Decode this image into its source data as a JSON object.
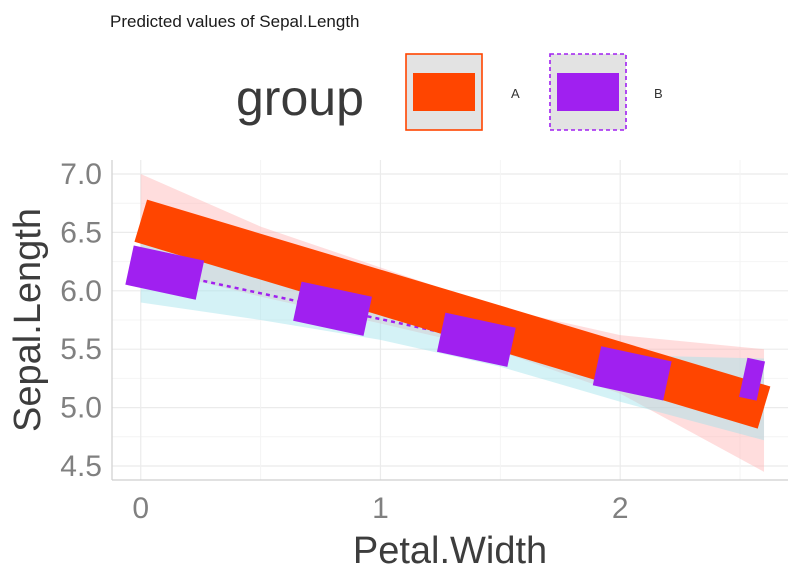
{
  "chart_data": {
    "type": "line",
    "title": "Predicted values of Sepal.Length",
    "xlabel": "Petal.Width",
    "ylabel": "Sepal.Length",
    "xlim": [
      -0.12,
      2.7
    ],
    "ylim": [
      4.38,
      7.12
    ],
    "x_ticks": [
      0,
      1,
      2
    ],
    "x_tick_labels": [
      "0",
      "1",
      "2"
    ],
    "y_ticks": [
      4.5,
      5.0,
      5.5,
      6.0,
      6.5,
      7.0
    ],
    "y_tick_labels": [
      "4.5",
      "5.0",
      "5.5",
      "6.0",
      "6.5",
      "7.0"
    ],
    "grid": true,
    "legend": {
      "title": "group",
      "position": "top"
    },
    "series": [
      {
        "name": "A",
        "color": "#ff4500",
        "linestyle": "solid",
        "x": [
          0,
          2.6
        ],
        "y": [
          6.6,
          5.0
        ],
        "ci_x": [
          0,
          0.5,
          1.0,
          1.5,
          2.0,
          2.6
        ],
        "ci_low": [
          6.2,
          5.95,
          5.72,
          5.48,
          5.12,
          4.45
        ],
        "ci_high": [
          7.0,
          6.55,
          6.2,
          5.85,
          5.62,
          5.5
        ],
        "ci_color": "#ffb3b3"
      },
      {
        "name": "B",
        "color": "#a020f0",
        "linestyle": "dashed",
        "x": [
          0,
          2.6
        ],
        "y": [
          6.2,
          5.05
        ],
        "ci_x": [
          0,
          0.5,
          1.0,
          1.5,
          2.0,
          2.6
        ],
        "ci_low": [
          5.9,
          5.75,
          5.58,
          5.35,
          5.05,
          4.72
        ],
        "ci_high": [
          6.5,
          6.2,
          5.85,
          5.6,
          5.45,
          5.42
        ],
        "ci_color": "#9fe3ea",
        "markers_x": [
          0.1,
          0.8,
          1.4,
          2.05,
          2.55
        ]
      }
    ]
  }
}
